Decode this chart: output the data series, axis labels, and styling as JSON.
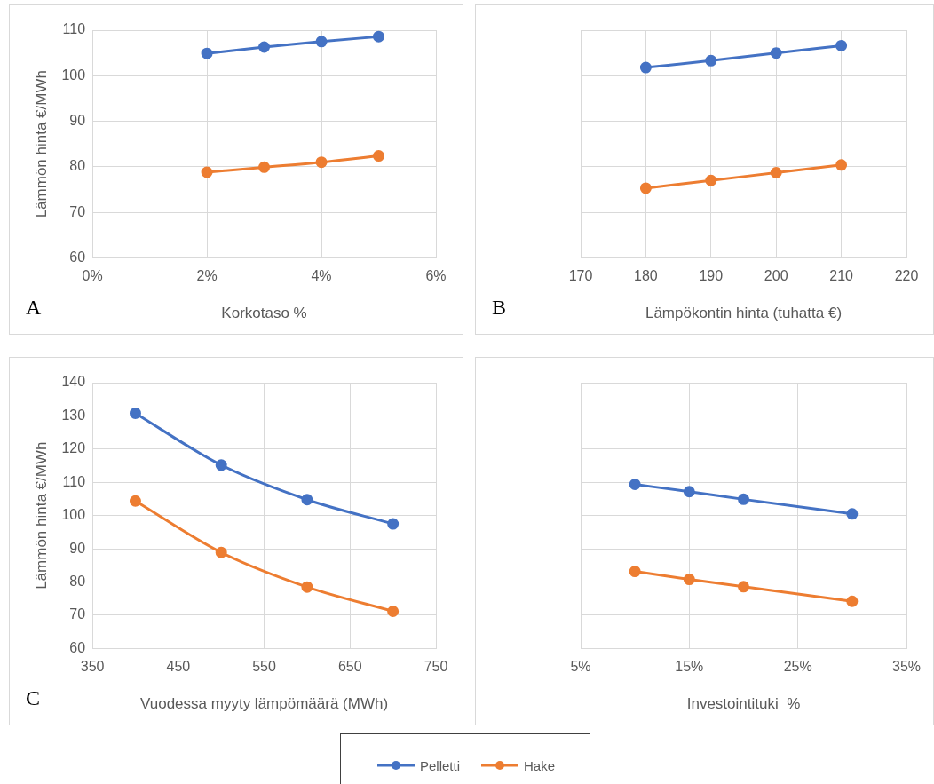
{
  "chart_data": [
    {
      "type": "line",
      "xlabel": "Korkotaso %",
      "ylabel": "Lämmön hinta €/MWh",
      "annotations": [
        "A"
      ],
      "x": [
        2,
        3,
        4,
        5
      ],
      "series": [
        {
          "name": "Pelletti",
          "color": "#4472c4",
          "values": [
            104.9,
            106.3,
            107.5,
            108.6
          ]
        },
        {
          "name": "Hake",
          "color": "#ed7d31",
          "values": [
            78.8,
            79.9,
            81.0,
            82.4
          ]
        }
      ],
      "xlim": [
        0,
        6
      ],
      "xticks": [
        {
          "value": 0,
          "label": "0%"
        },
        {
          "value": 2,
          "label": "2%"
        },
        {
          "value": 4,
          "label": "4%"
        },
        {
          "value": 6,
          "label": "6%"
        }
      ],
      "ylim": [
        60,
        110
      ],
      "yticks": [
        60,
        70,
        80,
        90,
        100,
        110
      ],
      "grid": true,
      "marker": "circle",
      "legend": "bottom"
    },
    {
      "type": "line",
      "xlabel": "Lämpökontin hinta (tuhatta €)",
      "annotations": [
        "B"
      ],
      "x": [
        180,
        190,
        200,
        210
      ],
      "series": [
        {
          "name": "Pelletti",
          "color": "#4472c4",
          "values": [
            101.8,
            103.3,
            105.0,
            106.6
          ]
        },
        {
          "name": "Hake",
          "color": "#ed7d31",
          "values": [
            75.3,
            77.0,
            78.7,
            80.4
          ]
        }
      ],
      "xlim": [
        170,
        220
      ],
      "xticks": [
        170,
        180,
        190,
        200,
        210,
        220
      ],
      "ylim": [
        60,
        110
      ],
      "yticks": [
        60,
        70,
        80,
        90,
        100,
        110
      ],
      "tick_labels": "x",
      "grid": true,
      "marker": "circle",
      "legend": "bottom"
    },
    {
      "type": "line",
      "xlabel": "Vuodessa myyty lämpömäärä (MWh)",
      "ylabel": "Lämmön hinta €/MWh",
      "annotations": [
        "C"
      ],
      "x": [
        400,
        500,
        600,
        700
      ],
      "series": [
        {
          "name": "Pelletti",
          "color": "#4472c4",
          "values": [
            130.8,
            115.2,
            104.8,
            97.5
          ]
        },
        {
          "name": "Hake",
          "color": "#ed7d31",
          "values": [
            104.4,
            88.9,
            78.5,
            71.2
          ]
        }
      ],
      "xlim": [
        350,
        750
      ],
      "xticks": [
        350,
        450,
        550,
        650,
        750
      ],
      "ylim": [
        60,
        140
      ],
      "yticks": [
        60,
        70,
        80,
        90,
        100,
        110,
        120,
        130,
        140
      ],
      "grid": true,
      "marker": "circle",
      "legend": "bottom"
    },
    {
      "type": "line",
      "xlabel": "Investointituki  %",
      "x": [
        10,
        15,
        20,
        30
      ],
      "series": [
        {
          "name": "Pelletti",
          "color": "#4472c4",
          "values": [
            109.4,
            107.2,
            104.9,
            100.5
          ]
        },
        {
          "name": "Hake",
          "color": "#ed7d31",
          "values": [
            83.2,
            80.8,
            78.6,
            74.2
          ]
        }
      ],
      "xlim": [
        5,
        35
      ],
      "xticks": [
        {
          "value": 5,
          "label": "5%"
        },
        {
          "value": 15,
          "label": "15%"
        },
        {
          "value": 25,
          "label": "25%"
        },
        {
          "value": 35,
          "label": "35%"
        }
      ],
      "ylim": [
        60,
        140
      ],
      "yticks": [
        60,
        70,
        80,
        90,
        100,
        110,
        120,
        130,
        140
      ],
      "tick_labels": "x",
      "grid": true,
      "marker": "circle",
      "legend": "bottom"
    }
  ]
}
